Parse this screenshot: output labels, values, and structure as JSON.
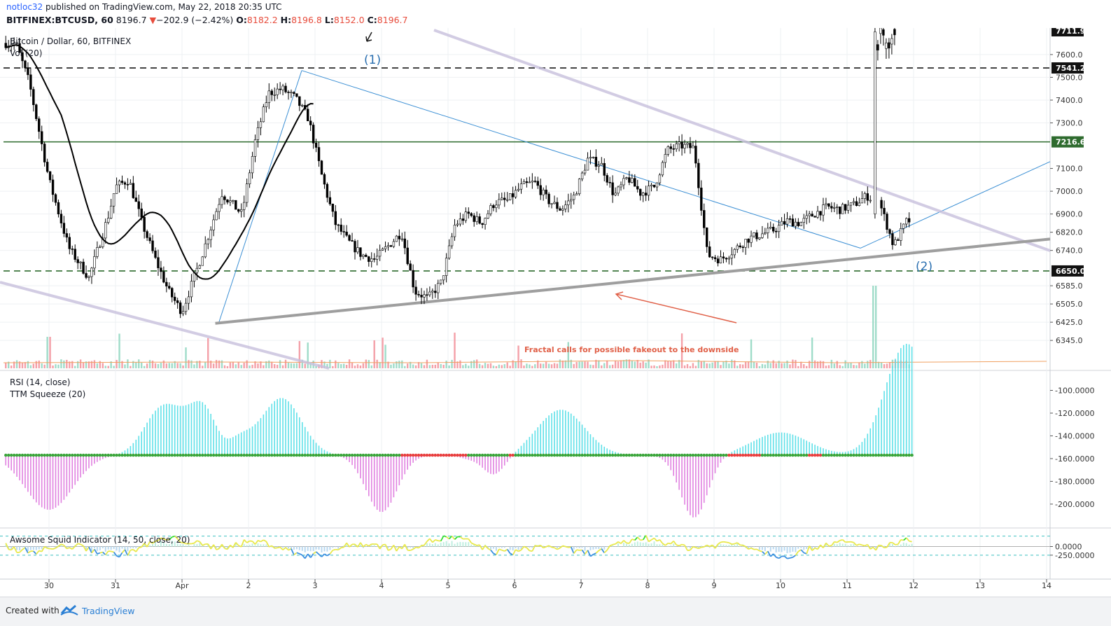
{
  "header": {
    "author": "notloc32",
    "published_text": "published on TradingView.com, May 22, 2018 20:35 UTC",
    "symbol": "BITFINEX:BTCUSD, 60",
    "last": "8196.7",
    "change_arrow": "▼",
    "change": "−202.9 (−2.42%)",
    "o_label": "O:",
    "o_value": "8182.2",
    "h_label": "H:",
    "h_value": "8196.8",
    "l_label": "L:",
    "l_value": "8152.0",
    "c_label": "C:",
    "c_value": "8196.7"
  },
  "footer": {
    "created_with": "Created with",
    "brand": "TradingView"
  },
  "colors": {
    "up": "#8fd3c1",
    "down": "#000000",
    "rsi_hist_pos": "#5ee0e8",
    "rsi_hist_neg": "#e080e0",
    "squeeze_on": "#3aa53a",
    "squeeze_off": "#e83e3e",
    "level_dashed": "#1a1a1a",
    "level_green": "#2e6b2e",
    "trendline_blue": "#3b8fd4",
    "channel_purple": "#c8c0dd",
    "support_gray": "#9e9e9e",
    "annotation_red": "#e06048"
  },
  "chart_data": [
    {
      "type": "line",
      "title": "Bitcoin / Dollar, 60, BITFINEX",
      "volume_label": "Vol (20)",
      "x_tick_labels": [
        "30",
        "31",
        "Apr",
        "2",
        "3",
        "4",
        "5",
        "6",
        "7",
        "8",
        "9",
        "10",
        "11",
        "12",
        "13",
        "14"
      ],
      "y_tick_labels": [
        "7600.0",
        "7500.0",
        "7400.0",
        "7300.0",
        "7100.0",
        "7000.0",
        "6900.0",
        "6820.0",
        "6740.0",
        "6585.0",
        "6505.0",
        "6425.0",
        "6345.0"
      ],
      "price_badges": [
        "7711.9",
        "7541.2",
        "7216.6",
        "6650.0"
      ],
      "series": [
        {
          "x": [
            29.5,
            29.7,
            30.0,
            30.3,
            30.6,
            30.9,
            31.0,
            31.2,
            31.4,
            31.6,
            31.8,
            32.0,
            32.3,
            32.6,
            32.9,
            33.1,
            33.3,
            33.5,
            33.7,
            33.9,
            34.1,
            34.3,
            34.5,
            34.7,
            34.9,
            35.1,
            35.3,
            35.5,
            35.7,
            35.9,
            36.1,
            36.3,
            36.5,
            36.7,
            36.9,
            37.1,
            37.3,
            37.5,
            37.7,
            37.9,
            38.1,
            38.3,
            38.5,
            38.7,
            38.9,
            39.1,
            39.3,
            39.5,
            39.7,
            39.9,
            40.1,
            40.3,
            40.5,
            40.7,
            40.9,
            41.1,
            41.3,
            41.5,
            41.7,
            41.9,
            42.1,
            42.3,
            42.5,
            42.7,
            42.9
          ],
          "values": [
            7650,
            7480,
            7050,
            6750,
            6620,
            6900,
            7020,
            7050,
            6860,
            6700,
            6560,
            6470,
            6720,
            6990,
            6900,
            7220,
            7430,
            7450,
            7410,
            7320,
            7070,
            6860,
            6780,
            6720,
            6700,
            6760,
            6820,
            6560,
            6530,
            6600,
            6850,
            6900,
            6860,
            6950,
            6960,
            7020,
            7040,
            6960,
            6920,
            6980,
            7140,
            7120,
            6980,
            7060,
            6990,
            7020,
            7180,
            7200,
            7190,
            6720,
            6700,
            6740,
            6790,
            6810,
            6830,
            6870,
            6860,
            6900,
            6930,
            6920,
            6940,
            6980,
            6940,
            6760,
            6870
          ]
        }
      ],
      "annotations": [
        "(1)",
        "(2)",
        "Fractal calls for possible fakeout to the downside"
      ]
    },
    {
      "type": "bar",
      "title": "RSI (14, close)",
      "subtitle": "TTM Squeeze (20)",
      "y_tick_labels": [
        "-100.0000",
        "-120.0000",
        "-140.0000",
        "-160.0000",
        "-180.0000",
        "-200.0000"
      ]
    },
    {
      "type": "area",
      "title": "Awsome Squid Indicator (14, 50, close, 20)",
      "y_tick_labels": [
        "0.0000",
        "-250.0000"
      ]
    }
  ]
}
